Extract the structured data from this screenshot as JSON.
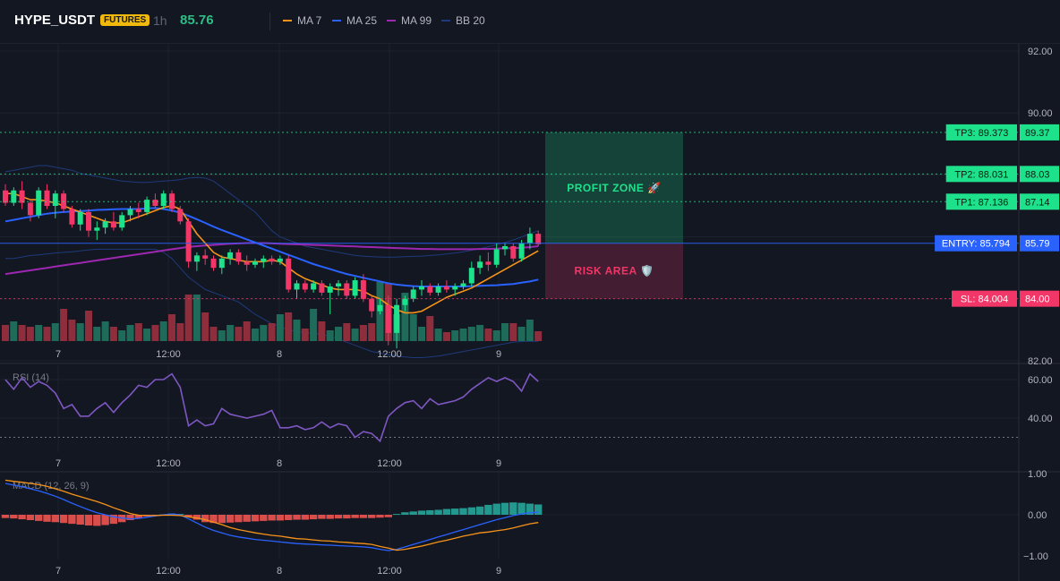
{
  "header": {
    "symbol": "HYPE_USDT",
    "badge": "FUTURES",
    "timeframe": "1h",
    "price": "85.76",
    "legend": [
      {
        "label": "MA 7",
        "color": "#f7931a"
      },
      {
        "label": "MA 25",
        "color": "#2962ff"
      },
      {
        "label": "MA 99",
        "color": "#9c27b0"
      },
      {
        "label": "BB 20",
        "color": "#1e3a7a"
      }
    ]
  },
  "colors": {
    "up": "#1ee28b",
    "down": "#f23668",
    "bg": "#131722",
    "grid": "#1e222d"
  },
  "chart_data": [
    {
      "type": "candlestick",
      "title": "",
      "x_ticks": [
        "7",
        "12:00",
        "8",
        "12:00",
        "9"
      ],
      "y_ticks": [
        "92.00",
        "90.00",
        "82.00"
      ],
      "ylim": [
        80.3,
        92.6
      ],
      "candles": [
        [
          87.5,
          87.7,
          87.0,
          87.1
        ],
        [
          87.1,
          87.6,
          87.0,
          87.5
        ],
        [
          87.5,
          87.8,
          86.9,
          87.1
        ],
        [
          87.1,
          87.2,
          86.5,
          86.7
        ],
        [
          86.7,
          87.6,
          86.6,
          87.5
        ],
        [
          87.5,
          87.7,
          86.9,
          87.0
        ],
        [
          87.0,
          87.5,
          86.6,
          87.4
        ],
        [
          87.4,
          87.5,
          86.8,
          86.9
        ],
        [
          86.9,
          87.0,
          86.3,
          86.4
        ],
        [
          86.4,
          86.9,
          86.2,
          86.8
        ],
        [
          86.8,
          86.9,
          86.0,
          86.2
        ],
        [
          86.2,
          86.5,
          85.9,
          86.3
        ],
        [
          86.3,
          86.6,
          86.1,
          86.5
        ],
        [
          86.5,
          86.8,
          86.2,
          86.3
        ],
        [
          86.3,
          86.8,
          86.2,
          86.7
        ],
        [
          86.7,
          87.0,
          86.5,
          86.9
        ],
        [
          86.9,
          87.1,
          86.6,
          86.8
        ],
        [
          86.8,
          87.3,
          86.7,
          87.2
        ],
        [
          87.2,
          87.4,
          86.9,
          87.0
        ],
        [
          87.0,
          87.5,
          86.9,
          87.4
        ],
        [
          87.4,
          87.5,
          86.8,
          86.9
        ],
        [
          86.9,
          87.0,
          86.4,
          86.5
        ],
        [
          86.5,
          86.6,
          85.0,
          85.2
        ],
        [
          85.2,
          85.5,
          84.9,
          85.4
        ],
        [
          85.4,
          85.6,
          85.1,
          85.3
        ],
        [
          85.3,
          85.4,
          84.9,
          85.0
        ],
        [
          85.0,
          85.4,
          84.8,
          85.3
        ],
        [
          85.3,
          85.6,
          85.1,
          85.5
        ],
        [
          85.5,
          85.6,
          85.1,
          85.2
        ],
        [
          85.2,
          85.4,
          84.9,
          85.1
        ],
        [
          85.1,
          85.3,
          85.0,
          85.2
        ],
        [
          85.2,
          85.4,
          85.0,
          85.3
        ],
        [
          85.3,
          85.4,
          85.1,
          85.2
        ],
        [
          85.2,
          85.4,
          85.1,
          85.3
        ],
        [
          85.3,
          85.4,
          84.2,
          84.3
        ],
        [
          84.3,
          84.6,
          84.0,
          84.5
        ],
        [
          84.5,
          84.6,
          84.2,
          84.3
        ],
        [
          84.3,
          84.6,
          84.2,
          84.5
        ],
        [
          84.5,
          84.6,
          84.1,
          84.2
        ],
        [
          84.2,
          84.5,
          83.5,
          84.4
        ],
        [
          84.4,
          84.6,
          84.1,
          84.5
        ],
        [
          84.5,
          84.6,
          84.0,
          84.1
        ],
        [
          84.1,
          84.7,
          84.0,
          84.6
        ],
        [
          84.6,
          84.8,
          83.9,
          84.0
        ],
        [
          84.0,
          84.1,
          83.4,
          83.6
        ],
        [
          83.6,
          84.0,
          83.5,
          83.8
        ],
        [
          83.8,
          84.1,
          82.5,
          82.9
        ],
        [
          82.9,
          84.0,
          82.4,
          83.8
        ],
        [
          83.8,
          84.1,
          83.6,
          84.0
        ],
        [
          84.0,
          84.4,
          83.9,
          84.3
        ],
        [
          84.3,
          84.6,
          84.1,
          84.4
        ],
        [
          84.4,
          84.5,
          84.1,
          84.2
        ],
        [
          84.2,
          84.5,
          84.1,
          84.4
        ],
        [
          84.4,
          84.6,
          84.2,
          84.3
        ],
        [
          84.3,
          84.5,
          84.1,
          84.4
        ],
        [
          84.4,
          84.6,
          84.3,
          84.5
        ],
        [
          84.5,
          85.2,
          84.4,
          85.0
        ],
        [
          85.0,
          85.4,
          84.8,
          85.2
        ],
        [
          85.2,
          85.5,
          84.9,
          85.1
        ],
        [
          85.1,
          85.8,
          85.0,
          85.6
        ],
        [
          85.6,
          85.8,
          85.4,
          85.7
        ],
        [
          85.7,
          85.8,
          85.2,
          85.3
        ],
        [
          85.3,
          85.9,
          85.2,
          85.8
        ],
        [
          85.8,
          86.3,
          85.6,
          86.1
        ],
        [
          86.1,
          86.2,
          85.7,
          85.76
        ]
      ],
      "volume": [
        18,
        22,
        18,
        16,
        18,
        16,
        20,
        36,
        24,
        20,
        34,
        16,
        22,
        16,
        12,
        18,
        20,
        14,
        18,
        22,
        30,
        20,
        52,
        52,
        32,
        16,
        12,
        18,
        16,
        22,
        14,
        18,
        20,
        30,
        32,
        24,
        14,
        36,
        22,
        12,
        16,
        20,
        14,
        18,
        20,
        66,
        64,
        30,
        54,
        30,
        16,
        28,
        14,
        10,
        12,
        14,
        16,
        18,
        14,
        12,
        20,
        20,
        16,
        24,
        11
      ],
      "ma7": [
        87.4,
        87.4,
        87.3,
        87.2,
        87.2,
        87.15,
        87.1,
        87.0,
        86.9,
        86.8,
        86.7,
        86.6,
        86.5,
        86.45,
        86.45,
        86.55,
        86.65,
        86.75,
        86.85,
        86.95,
        87.0,
        86.9,
        86.5,
        86.1,
        85.8,
        85.5,
        85.35,
        85.3,
        85.25,
        85.2,
        85.2,
        85.2,
        85.25,
        85.2,
        85.0,
        84.8,
        84.65,
        84.55,
        84.45,
        84.35,
        84.3,
        84.3,
        84.3,
        84.25,
        84.1,
        84.0,
        83.8,
        83.65,
        83.55,
        83.55,
        83.6,
        83.75,
        83.9,
        84.05,
        84.15,
        84.25,
        84.35,
        84.5,
        84.65,
        84.8,
        84.95,
        85.1,
        85.25,
        85.4,
        85.55
      ],
      "ma25": [
        86.5,
        86.55,
        86.6,
        86.65,
        86.7,
        86.75,
        86.78,
        86.8,
        86.82,
        86.83,
        86.85,
        86.87,
        86.88,
        86.89,
        86.9,
        86.9,
        86.9,
        86.92,
        86.93,
        86.9,
        86.85,
        86.78,
        86.68,
        86.57,
        86.45,
        86.33,
        86.22,
        86.12,
        86.02,
        85.92,
        85.82,
        85.72,
        85.62,
        85.52,
        85.42,
        85.32,
        85.22,
        85.12,
        85.04,
        84.96,
        84.88,
        84.8,
        84.74,
        84.68,
        84.62,
        84.56,
        84.5,
        84.46,
        84.43,
        84.41,
        84.4,
        84.4,
        84.4,
        84.4,
        84.4,
        84.4,
        84.41,
        84.42,
        84.43,
        84.44,
        84.46,
        84.48,
        84.52,
        84.56,
        84.62
      ],
      "ma99": [
        84.8,
        84.84,
        84.88,
        84.92,
        84.96,
        85.0,
        85.04,
        85.08,
        85.12,
        85.16,
        85.2,
        85.24,
        85.28,
        85.32,
        85.36,
        85.4,
        85.44,
        85.48,
        85.52,
        85.56,
        85.6,
        85.64,
        85.68,
        85.7,
        85.72,
        85.74,
        85.76,
        85.78,
        85.79,
        85.8,
        85.8,
        85.8,
        85.79,
        85.78,
        85.77,
        85.76,
        85.75,
        85.74,
        85.73,
        85.72,
        85.71,
        85.7,
        85.69,
        85.68,
        85.67,
        85.66,
        85.65,
        85.64,
        85.63,
        85.62,
        85.61,
        85.61,
        85.6,
        85.6,
        85.6,
        85.6,
        85.6,
        85.61,
        85.61,
        85.62,
        85.63,
        85.64,
        85.65,
        85.67,
        85.7
      ],
      "bb_upper": [
        88.1,
        88.15,
        88.2,
        88.25,
        88.3,
        88.3,
        88.25,
        88.2,
        88.15,
        88.05,
        88.0,
        87.95,
        87.9,
        87.85,
        87.8,
        87.78,
        87.76,
        87.76,
        87.78,
        87.8,
        87.82,
        87.85,
        87.9,
        87.92,
        87.9,
        87.8,
        87.6,
        87.4,
        87.2,
        87.0,
        86.8,
        86.5,
        86.2,
        86.0,
        85.9,
        85.8,
        85.7,
        85.65,
        85.6,
        85.55,
        85.5,
        85.45,
        85.4,
        85.38,
        85.36,
        85.35,
        85.34,
        85.35,
        85.36,
        85.37,
        85.38,
        85.4,
        85.42,
        85.45,
        85.48,
        85.52,
        85.57,
        85.62,
        85.68,
        85.75,
        85.82,
        85.9,
        86.0,
        86.1,
        86.2
      ],
      "bb_lower": [
        85.3,
        85.3,
        85.35,
        85.4,
        85.42,
        85.45,
        85.48,
        85.5,
        85.52,
        85.55,
        85.58,
        85.6,
        85.6,
        85.6,
        85.6,
        85.6,
        85.6,
        85.6,
        85.6,
        85.5,
        85.3,
        85.0,
        84.7,
        84.5,
        84.3,
        84.2,
        84.1,
        84.0,
        83.9,
        83.7,
        83.5,
        83.35,
        83.2,
        83.1,
        83.0,
        82.95,
        82.9,
        82.9,
        82.85,
        82.8,
        82.7,
        82.6,
        82.5,
        82.4,
        82.3,
        82.25,
        82.2,
        82.15,
        82.12,
        82.1,
        82.1,
        82.12,
        82.15,
        82.2,
        82.25,
        82.3,
        82.35,
        82.4,
        82.45,
        82.5,
        82.55,
        82.6,
        82.62,
        82.63,
        82.63
      ],
      "levels": [
        {
          "key": "tp3",
          "label": "TP3: 89.373",
          "value": 89.373,
          "axis_label": "89.37",
          "color": "#1ee28b"
        },
        {
          "key": "tp2",
          "label": "TP2: 88.031",
          "value": 88.031,
          "axis_label": "88.03",
          "color": "#1ee28b"
        },
        {
          "key": "tp1",
          "label": "TP1: 87.136",
          "value": 87.136,
          "axis_label": "87.14",
          "color": "#1ee28b"
        },
        {
          "key": "entry",
          "label": "ENTRY: 85.794",
          "value": 85.794,
          "axis_label": "85.79",
          "color": "#2962ff"
        },
        {
          "key": "sl",
          "label": "SL: 84.004",
          "value": 84.004,
          "axis_label": "84.00",
          "color": "#f23668"
        }
      ],
      "zones": [
        {
          "label": "PROFIT ZONE 🚀",
          "from": 85.794,
          "to": 89.373,
          "color": "#1ee28b"
        },
        {
          "label": "RISK AREA 🛡️",
          "from": 84.004,
          "to": 85.794,
          "color": "#f23668"
        }
      ]
    },
    {
      "type": "line",
      "title": "RSI (14)",
      "x_ticks": [
        "7",
        "12:00",
        "8",
        "12:00",
        "9"
      ],
      "y_ticks": [
        "60.00",
        "40.00"
      ],
      "ylim": [
        20,
        70
      ],
      "values": [
        60,
        55,
        61,
        56,
        59,
        57,
        53,
        45,
        47,
        41,
        41,
        45,
        48,
        43,
        48,
        52,
        57,
        56,
        60,
        60,
        63,
        56,
        36,
        39,
        36,
        37,
        45,
        42,
        41,
        40,
        41,
        42,
        44,
        35,
        35,
        36,
        34,
        35,
        38,
        35,
        37,
        36,
        30,
        33,
        32,
        28,
        41,
        45,
        48,
        49,
        45,
        50,
        47,
        48,
        49,
        51,
        55,
        58,
        61,
        59,
        61,
        59,
        54,
        63,
        59
      ],
      "reference_line": 30
    },
    {
      "type": "macd",
      "title": "MACD (12, 26, 9)",
      "x_ticks": [
        "7",
        "12:00",
        "8",
        "12:00",
        "9"
      ],
      "y_ticks": [
        "1.00",
        "0.00",
        "−1.00"
      ],
      "ylim": [
        -1.05,
        1.05
      ],
      "histogram": [
        -0.08,
        -0.09,
        -0.11,
        -0.13,
        -0.15,
        -0.17,
        -0.18,
        -0.2,
        -0.22,
        -0.24,
        -0.26,
        -0.27,
        -0.25,
        -0.22,
        -0.18,
        -0.13,
        -0.08,
        -0.04,
        -0.01,
        0.01,
        0.03,
        0.02,
        -0.05,
        -0.12,
        -0.18,
        -0.2,
        -0.2,
        -0.19,
        -0.18,
        -0.17,
        -0.16,
        -0.15,
        -0.14,
        -0.14,
        -0.13,
        -0.12,
        -0.12,
        -0.11,
        -0.1,
        -0.1,
        -0.09,
        -0.09,
        -0.08,
        -0.08,
        -0.08,
        -0.07,
        -0.06,
        0.02,
        0.06,
        0.08,
        0.1,
        0.11,
        0.12,
        0.14,
        0.15,
        0.16,
        0.18,
        0.2,
        0.24,
        0.27,
        0.29,
        0.3,
        0.29,
        0.27,
        0.25
      ],
      "macd": [
        0.76,
        0.72,
        0.68,
        0.63,
        0.58,
        0.52,
        0.45,
        0.37,
        0.28,
        0.2,
        0.12,
        0.05,
        0.0,
        -0.05,
        -0.08,
        -0.1,
        -0.09,
        -0.06,
        -0.03,
        0.0,
        0.02,
        0.0,
        -0.1,
        -0.2,
        -0.3,
        -0.38,
        -0.44,
        -0.5,
        -0.54,
        -0.57,
        -0.6,
        -0.62,
        -0.64,
        -0.66,
        -0.68,
        -0.7,
        -0.71,
        -0.72,
        -0.73,
        -0.74,
        -0.75,
        -0.76,
        -0.77,
        -0.78,
        -0.8,
        -0.84,
        -0.87,
        -0.84,
        -0.78,
        -0.72,
        -0.66,
        -0.6,
        -0.54,
        -0.48,
        -0.42,
        -0.36,
        -0.3,
        -0.24,
        -0.18,
        -0.12,
        -0.07,
        -0.02,
        0.02,
        0.05,
        0.06
      ],
      "signal": [
        0.84,
        0.81,
        0.79,
        0.76,
        0.73,
        0.69,
        0.63,
        0.57,
        0.5,
        0.44,
        0.38,
        0.32,
        0.25,
        0.17,
        0.1,
        0.03,
        -0.01,
        -0.02,
        -0.02,
        -0.01,
        -0.01,
        -0.02,
        -0.05,
        -0.08,
        -0.12,
        -0.18,
        -0.24,
        -0.31,
        -0.36,
        -0.4,
        -0.44,
        -0.47,
        -0.5,
        -0.52,
        -0.55,
        -0.58,
        -0.59,
        -0.61,
        -0.63,
        -0.64,
        -0.66,
        -0.67,
        -0.69,
        -0.7,
        -0.72,
        -0.77,
        -0.81,
        -0.86,
        -0.84,
        -0.8,
        -0.76,
        -0.71,
        -0.66,
        -0.62,
        -0.57,
        -0.52,
        -0.48,
        -0.44,
        -0.42,
        -0.39,
        -0.36,
        -0.32,
        -0.27,
        -0.22,
        -0.19
      ]
    }
  ]
}
